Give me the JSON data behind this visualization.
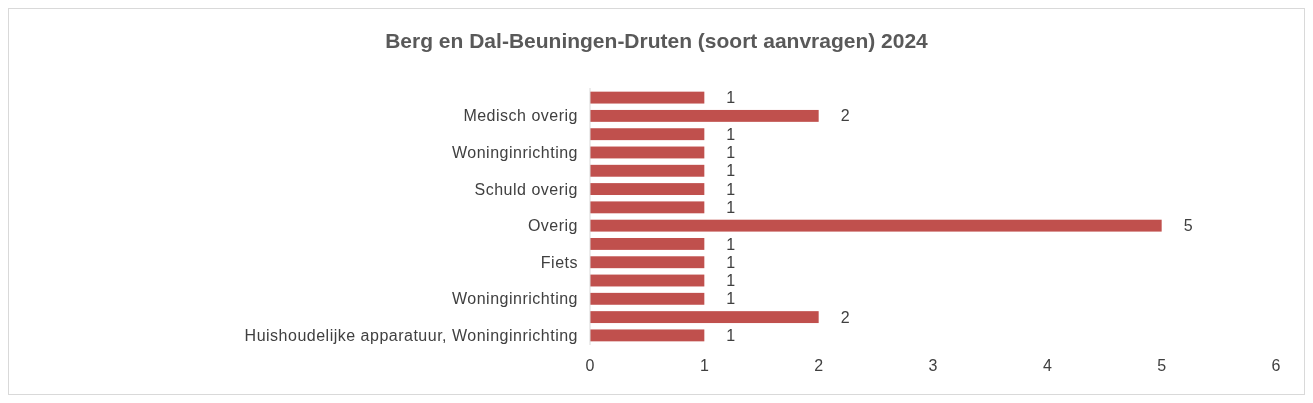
{
  "chart_data": {
    "type": "bar",
    "orientation": "horizontal",
    "title": "Berg en Dal-Beuningen-Druten (soort aanvragen) 2024",
    "categories": [
      null,
      "Medisch overig",
      null,
      "Woninginrichting",
      null,
      "Schuld overig",
      null,
      "Overig",
      null,
      "Fiets",
      null,
      "Woninginrichting",
      null,
      "Huishoudelijke apparatuur, Woninginrichting"
    ],
    "values": [
      1,
      2,
      1,
      1,
      1,
      1,
      1,
      5,
      1,
      1,
      1,
      1,
      2,
      1
    ],
    "color": "#c0504d",
    "xlim": [
      0,
      6
    ],
    "xticks": [
      0,
      1,
      2,
      3,
      4,
      5,
      6
    ],
    "data_labels": true,
    "grid": false
  }
}
